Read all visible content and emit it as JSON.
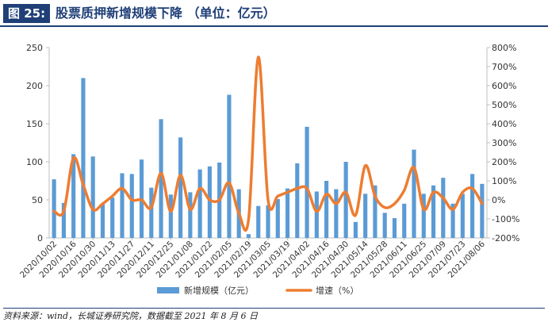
{
  "figure": {
    "label": "图 25:",
    "title": "股票质押新增规模下降  （单位：亿元）",
    "source": "资料来源：wind，长城证券研究院，数据截至 2021 年 8 月 6 日"
  },
  "colors": {
    "accent": "#1f3f77",
    "bar": "#5b9bd5",
    "line": "#ed7d31"
  },
  "chart_data": {
    "type": "bar",
    "categories": [
      "2020/10/02",
      "2020/10/09",
      "2020/10/16",
      "2020/10/23",
      "2020/10/30",
      "2020/11/06",
      "2020/11/13",
      "2020/11/20",
      "2020/11/27",
      "2020/12/04",
      "2020/12/11",
      "2020/12/18",
      "2020/12/25",
      "2021/01/01",
      "2021/01/08",
      "2021/01/15",
      "2021/01/22",
      "2021/01/29",
      "2021/02/05",
      "2021/02/12",
      "2021/02/19",
      "2021/02/26",
      "2021/03/05",
      "2021/03/12",
      "2021/03/19",
      "2021/03/26",
      "2021/04/02",
      "2021/04/09",
      "2021/04/16",
      "2021/04/23",
      "2021/04/30",
      "2021/05/07",
      "2021/05/14",
      "2021/05/21",
      "2021/05/28",
      "2021/06/04",
      "2021/06/11",
      "2021/06/18",
      "2021/06/25",
      "2021/07/02",
      "2021/07/09",
      "2021/07/16",
      "2021/07/23",
      "2021/07/30",
      "2021/08/06"
    ],
    "x_tick_labels": [
      "2020/10/02",
      "2020/10/16",
      "2020/10/30",
      "2020/11/13",
      "2020/11/27",
      "2020/12/11",
      "2020/12/25",
      "2021/01/08",
      "2021/01/22",
      "2021/02/05",
      "2021/02/19",
      "2021/03/05",
      "2021/03/19",
      "2021/04/02",
      "2021/04/16",
      "2021/04/30",
      "2021/05/14",
      "2021/05/28",
      "2021/06/11",
      "2021/06/25",
      "2021/07/09",
      "2021/07/23",
      "2021/08/06"
    ],
    "series": [
      {
        "name": "新增规模（亿元）",
        "type": "bar",
        "axis": "left",
        "values": [
          77,
          46,
          110,
          210,
          107,
          45,
          53,
          85,
          84,
          103,
          66,
          156,
          57,
          132,
          60,
          90,
          94,
          99,
          188,
          64,
          5,
          42,
          43,
          51,
          65,
          98,
          146,
          61,
          75,
          64,
          100,
          21,
          58,
          69,
          33,
          26,
          45,
          116,
          58,
          69,
          79,
          45,
          58,
          84,
          71
        ]
      },
      {
        "name": "增速（%）",
        "type": "line",
        "axis": "right",
        "values": [
          -60,
          -60,
          220,
          80,
          -50,
          -20,
          20,
          60,
          0,
          0,
          -40,
          140,
          -60,
          130,
          -50,
          60,
          0,
          0,
          90,
          -70,
          -100,
          750,
          0,
          20,
          40,
          60,
          60,
          -60,
          30,
          -20,
          40,
          -80,
          180,
          20,
          -40,
          -20,
          50,
          170,
          -50,
          40,
          10,
          -50,
          40,
          60,
          -20
        ]
      }
    ],
    "y_left": {
      "min": 0,
      "max": 250,
      "ticks": [
        "0",
        "50",
        "100",
        "150",
        "200",
        "250"
      ]
    },
    "y_right": {
      "min": -200,
      "max": 800,
      "ticks": [
        "-200%",
        "-100%",
        "0%",
        "100%",
        "200%",
        "300%",
        "400%",
        "500%",
        "600%",
        "700%",
        "800%"
      ]
    },
    "grid": false,
    "legend_position": "bottom"
  }
}
